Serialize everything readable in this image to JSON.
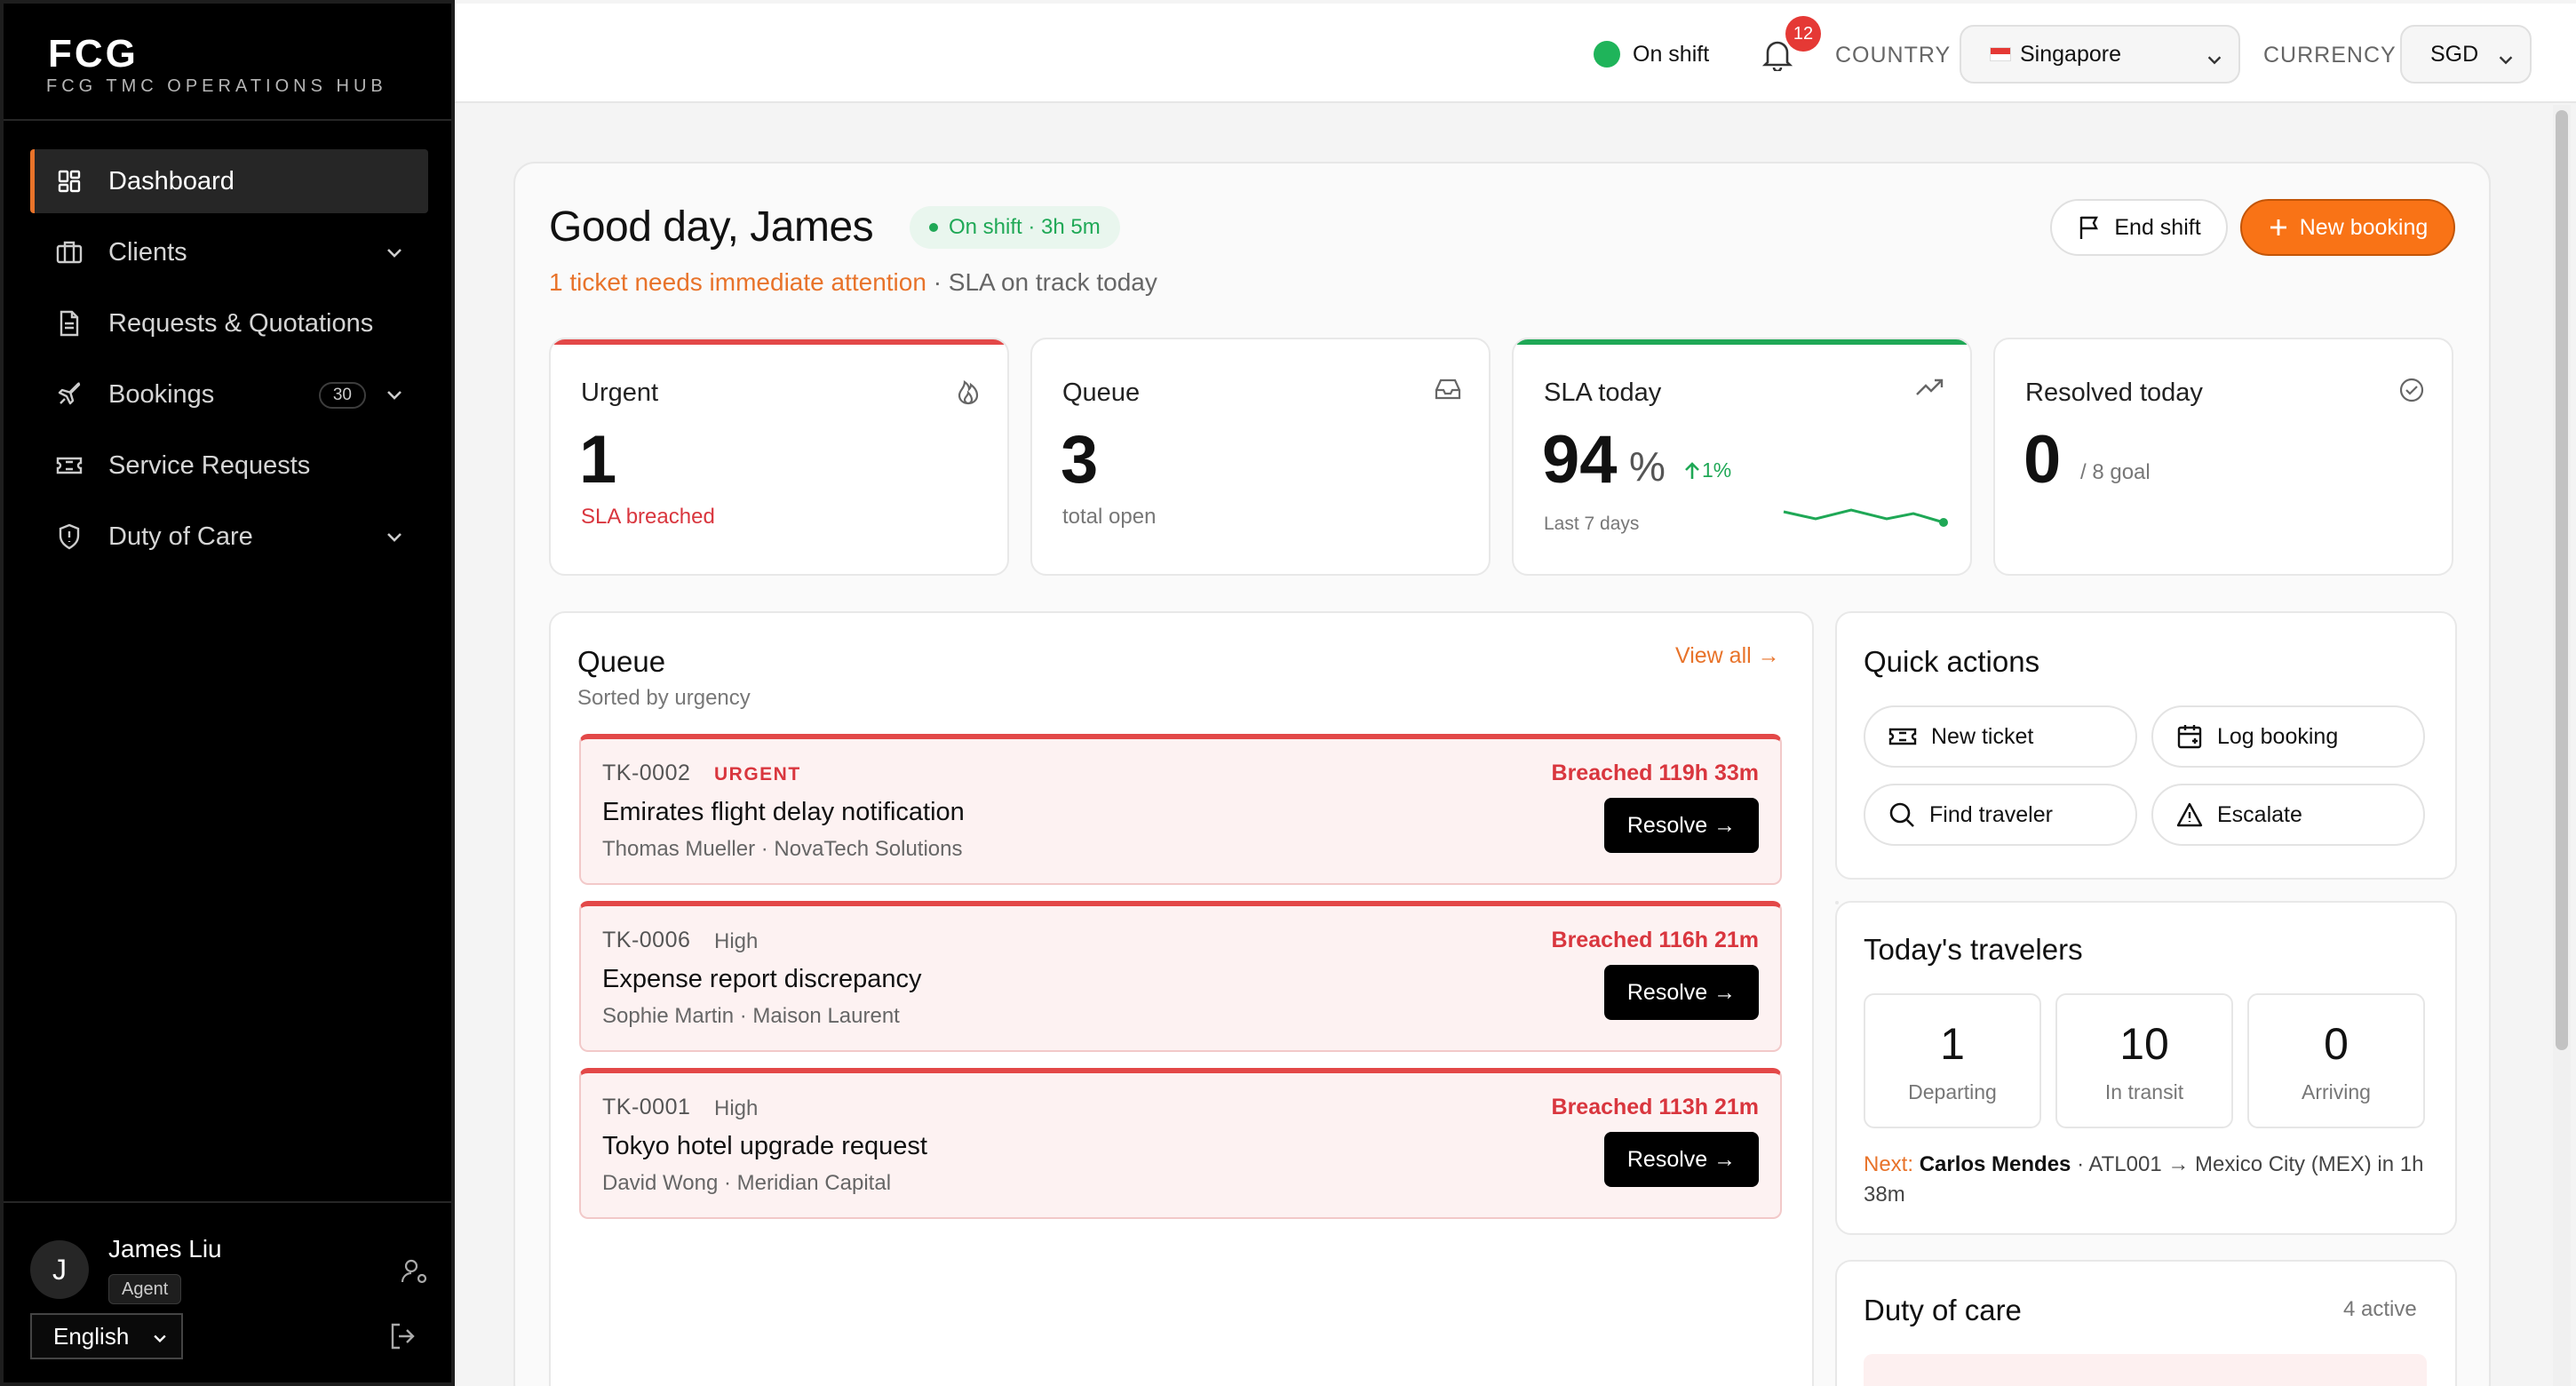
{
  "brand": {
    "logo": "FCG",
    "subtitle": "FCG TMC OPERATIONS HUB"
  },
  "sidebar": {
    "items": [
      {
        "label": "Dashboard",
        "icon": "dashboard-grid-icon",
        "active": true
      },
      {
        "label": "Clients",
        "icon": "briefcase-icon",
        "expandable": true
      },
      {
        "label": "Requests & Quotations",
        "icon": "document-icon"
      },
      {
        "label": "Bookings",
        "icon": "plane-icon",
        "badge": "30",
        "expandable": true
      },
      {
        "label": "Service Requests",
        "icon": "ticket-icon"
      },
      {
        "label": "Duty of Care",
        "icon": "shield-icon",
        "expandable": true
      }
    ],
    "user": {
      "initial": "J",
      "name": "James Liu",
      "role": "Agent"
    },
    "language": "English"
  },
  "topbar": {
    "shift_status": "On shift",
    "notifications": "12",
    "country_label": "COUNTRY",
    "country_value": "Singapore",
    "currency_label": "CURRENCY",
    "currency_value": "SGD"
  },
  "header": {
    "greeting": "Good day, James",
    "shift_pill": "On shift · 3h 5m",
    "attention_highlight": "1 ticket needs immediate attention",
    "attention_rest": " · SLA on track today",
    "end_shift": "End shift",
    "new_booking": "New booking"
  },
  "stats": {
    "urgent": {
      "title": "Urgent",
      "value": "1",
      "sub": "SLA breached"
    },
    "queue": {
      "title": "Queue",
      "value": "3",
      "sub": "total open"
    },
    "sla": {
      "title": "SLA today",
      "value": "94",
      "unit": "%",
      "trend": "1%",
      "sub": "Last 7 days"
    },
    "resolved": {
      "title": "Resolved today",
      "value": "0",
      "goal": "/ 8 goal"
    }
  },
  "queue": {
    "title": "Queue",
    "subtitle": "Sorted by urgency",
    "view_all": "View all →",
    "items": [
      {
        "id": "TK-0002",
        "priority": "URGENT",
        "title": "Emirates flight delay notification",
        "meta": "Thomas Mueller · NovaTech Solutions",
        "breach": "Breached 119h 33m",
        "action": "Resolve →"
      },
      {
        "id": "TK-0006",
        "priority": "High",
        "title": "Expense report discrepancy",
        "meta": "Sophie Martin · Maison Laurent",
        "breach": "Breached 116h 21m",
        "action": "Resolve →"
      },
      {
        "id": "TK-0001",
        "priority": "High",
        "title": "Tokyo hotel upgrade request",
        "meta": "David Wong · Meridian Capital",
        "breach": "Breached 113h 21m",
        "action": "Resolve →"
      }
    ]
  },
  "quick_actions": {
    "title": "Quick actions",
    "new_ticket": "New ticket",
    "log_booking": "Log booking",
    "find_traveler": "Find traveler",
    "escalate": "Escalate"
  },
  "travelers": {
    "title": "Today's travelers",
    "departing": {
      "value": "1",
      "label": "Departing"
    },
    "in_transit": {
      "value": "10",
      "label": "In transit"
    },
    "arriving": {
      "value": "0",
      "label": "Arriving"
    },
    "next_label": "Next:",
    "next_name": "Carlos Mendes",
    "next_rest": " · ATL001 → Mexico City (MEX) in 1h 38m"
  },
  "duty_of_care": {
    "title": "Duty of care",
    "count": "4 active"
  },
  "colors": {
    "accent": "#f97316",
    "danger": "#e34848",
    "success": "#1fa856"
  }
}
